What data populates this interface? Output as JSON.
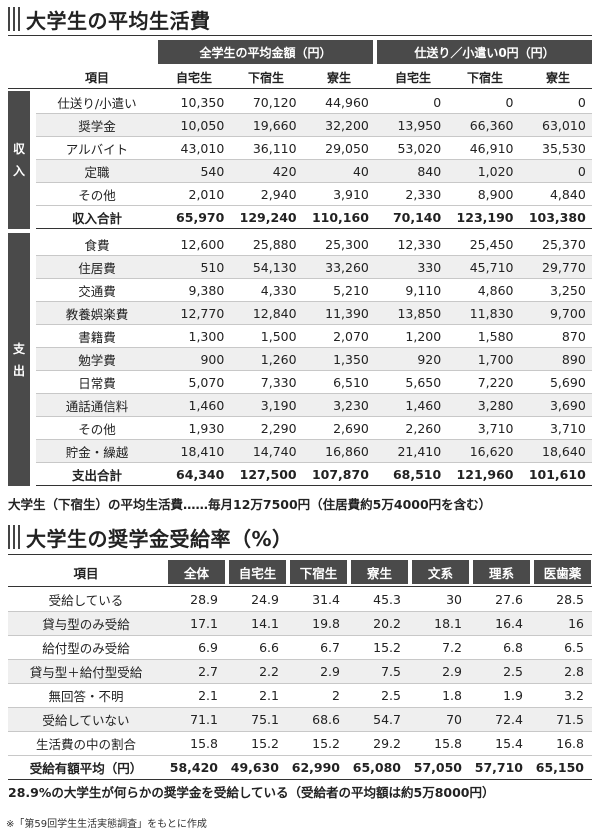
{
  "section1": {
    "title": "大学生の平均生活費",
    "group_all": "全学生の平均金額（円）",
    "group_zero": "仕送り／小遣い0円（円）",
    "col_item": "項目",
    "columns": [
      "自宅生",
      "下宿生",
      "寮生",
      "自宅生",
      "下宿生",
      "寮生"
    ],
    "income_label": [
      "収",
      "入"
    ],
    "expense_label": [
      "支",
      "出"
    ],
    "income_rows": [
      {
        "label": "仕送り/小遣い",
        "values": [
          "10,350",
          "70,120",
          "44,960",
          "0",
          "0",
          "0"
        ]
      },
      {
        "label": "奨学金",
        "values": [
          "10,050",
          "19,660",
          "32,200",
          "13,950",
          "66,360",
          "63,010"
        ]
      },
      {
        "label": "アルバイト",
        "values": [
          "43,010",
          "36,110",
          "29,050",
          "53,020",
          "46,910",
          "35,530"
        ]
      },
      {
        "label": "定職",
        "values": [
          "540",
          "420",
          "40",
          "840",
          "1,020",
          "0"
        ]
      },
      {
        "label": "その他",
        "values": [
          "2,010",
          "2,940",
          "3,910",
          "2,330",
          "8,900",
          "4,840"
        ]
      }
    ],
    "income_total": {
      "label": "収入合計",
      "values": [
        "65,970",
        "129,240",
        "110,160",
        "70,140",
        "123,190",
        "103,380"
      ]
    },
    "expense_rows": [
      {
        "label": "食費",
        "values": [
          "12,600",
          "25,880",
          "25,300",
          "12,330",
          "25,450",
          "25,370"
        ]
      },
      {
        "label": "住居費",
        "values": [
          "510",
          "54,130",
          "33,260",
          "330",
          "45,710",
          "29,770"
        ]
      },
      {
        "label": "交通費",
        "values": [
          "9,380",
          "4,330",
          "5,210",
          "9,110",
          "4,860",
          "3,250"
        ]
      },
      {
        "label": "教養娯楽費",
        "values": [
          "12,770",
          "12,840",
          "11,390",
          "13,850",
          "11,830",
          "9,700"
        ]
      },
      {
        "label": "書籍費",
        "values": [
          "1,300",
          "1,500",
          "2,070",
          "1,200",
          "1,580",
          "870"
        ]
      },
      {
        "label": "勉学費",
        "values": [
          "900",
          "1,260",
          "1,350",
          "920",
          "1,700",
          "890"
        ]
      },
      {
        "label": "日常費",
        "values": [
          "5,070",
          "7,330",
          "6,510",
          "5,650",
          "7,220",
          "5,690"
        ]
      },
      {
        "label": "通話通信料",
        "values": [
          "1,460",
          "3,190",
          "3,230",
          "1,460",
          "3,280",
          "3,690"
        ]
      },
      {
        "label": "その他",
        "values": [
          "1,930",
          "2,290",
          "2,690",
          "2,260",
          "3,710",
          "3,710"
        ]
      },
      {
        "label": "貯金・繰越",
        "values": [
          "18,410",
          "14,740",
          "16,860",
          "21,410",
          "16,620",
          "18,640"
        ]
      }
    ],
    "expense_total": {
      "label": "支出合計",
      "values": [
        "64,340",
        "127,500",
        "107,870",
        "68,510",
        "121,960",
        "101,610"
      ]
    },
    "summary": "大学生（下宿生）の平均生活費……毎月12万7500円（住居費約5万4000円を含む）"
  },
  "section2": {
    "title": "大学生の奨学金受給率（%）",
    "col_item": "項目",
    "columns": [
      "全体",
      "自宅生",
      "下宿生",
      "寮生",
      "文系",
      "理系",
      "医歯薬"
    ],
    "rows": [
      {
        "label": "受給している",
        "values": [
          "28.9",
          "24.9",
          "31.4",
          "45.3",
          "30",
          "27.6",
          "28.5"
        ]
      },
      {
        "label": "貸与型のみ受給",
        "values": [
          "17.1",
          "14.1",
          "19.8",
          "20.2",
          "18.1",
          "16.4",
          "16"
        ]
      },
      {
        "label": "給付型のみ受給",
        "values": [
          "6.9",
          "6.6",
          "6.7",
          "15.2",
          "7.2",
          "6.8",
          "6.5"
        ]
      },
      {
        "label": "貸与型＋給付型受給",
        "values": [
          "2.7",
          "2.2",
          "2.9",
          "7.5",
          "2.9",
          "2.5",
          "2.8"
        ]
      },
      {
        "label": "無回答・不明",
        "values": [
          "2.1",
          "2.1",
          "2",
          "2.5",
          "1.8",
          "1.9",
          "3.2"
        ]
      },
      {
        "label": "受給していない",
        "values": [
          "71.1",
          "75.1",
          "68.6",
          "54.7",
          "70",
          "72.4",
          "71.5"
        ]
      },
      {
        "label": "生活費の中の割合",
        "values": [
          "15.8",
          "15.2",
          "15.2",
          "29.2",
          "15.8",
          "15.4",
          "16.8"
        ]
      }
    ],
    "total": {
      "label": "受給有額平均（円）",
      "values": [
        "58,420",
        "49,630",
        "62,990",
        "65,080",
        "57,050",
        "57,710",
        "65,150"
      ]
    },
    "summary": "28.9%の大学生が何らかの奨学金を受給している（受給者の平均額は約5万8000円）"
  },
  "footnote": "※「第59回学生生活実態調査」をもとに作成"
}
